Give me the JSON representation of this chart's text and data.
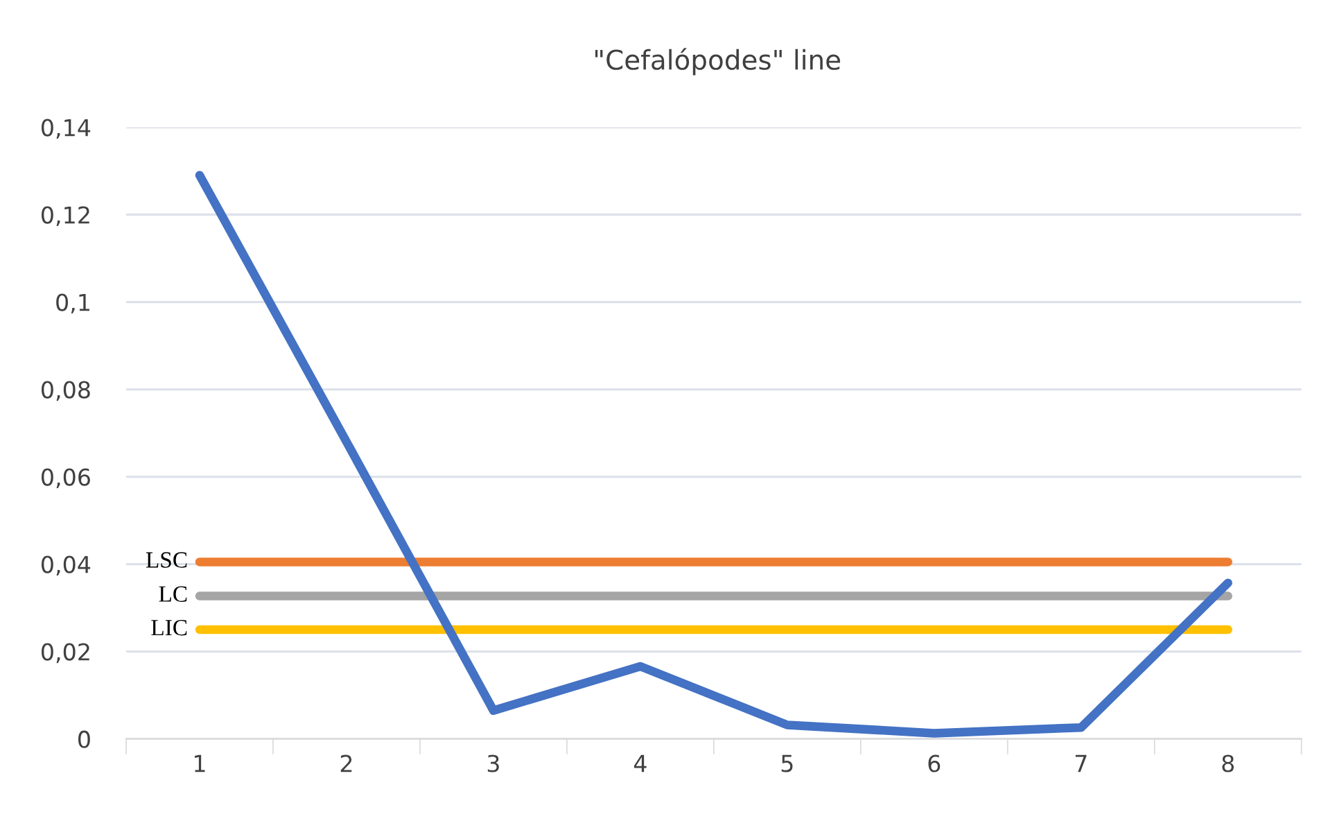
{
  "chart_data": {
    "type": "line",
    "title": "\"Cefalópodes\" line",
    "categories": [
      "1",
      "2",
      "3",
      "4",
      "5",
      "6",
      "7",
      "8"
    ],
    "series": [
      {
        "color": "#4472c4",
        "values": [
          0.129,
          0.068,
          0.0065,
          0.0166,
          0.0032,
          0.0013,
          0.0026,
          0.0357
        ]
      },
      {
        "name": "LSC",
        "color": "#ed7d31",
        "values": [
          0.0405,
          0.0405,
          0.0405,
          0.0405,
          0.0405,
          0.0405,
          0.0405,
          0.0405
        ]
      },
      {
        "name": "LC",
        "color": "#a5a5a5",
        "values": [
          0.0327,
          0.0327,
          0.0327,
          0.0327,
          0.0327,
          0.0327,
          0.0327,
          0.0327
        ]
      },
      {
        "name": "LIC",
        "color": "#ffc000",
        "values": [
          0.025,
          0.025,
          0.025,
          0.025,
          0.025,
          0.025,
          0.025,
          0.025
        ]
      }
    ],
    "ylim": [
      0,
      0.14
    ],
    "yticks": [
      0,
      {
        "value": 0.02,
        "label": "0,02"
      },
      {
        "value": 0.04,
        "label": "0,04"
      },
      {
        "value": 0.06,
        "label": "0,06"
      },
      {
        "value": 0.08,
        "label": "0,08"
      },
      {
        "value": 0.1,
        "label": "0,1"
      },
      {
        "value": 0.12,
        "label": "0,12"
      },
      {
        "value": 0.14,
        "label": "0,14"
      }
    ],
    "grid": "y",
    "legend": false,
    "marker": "none",
    "line_style": "solid"
  }
}
